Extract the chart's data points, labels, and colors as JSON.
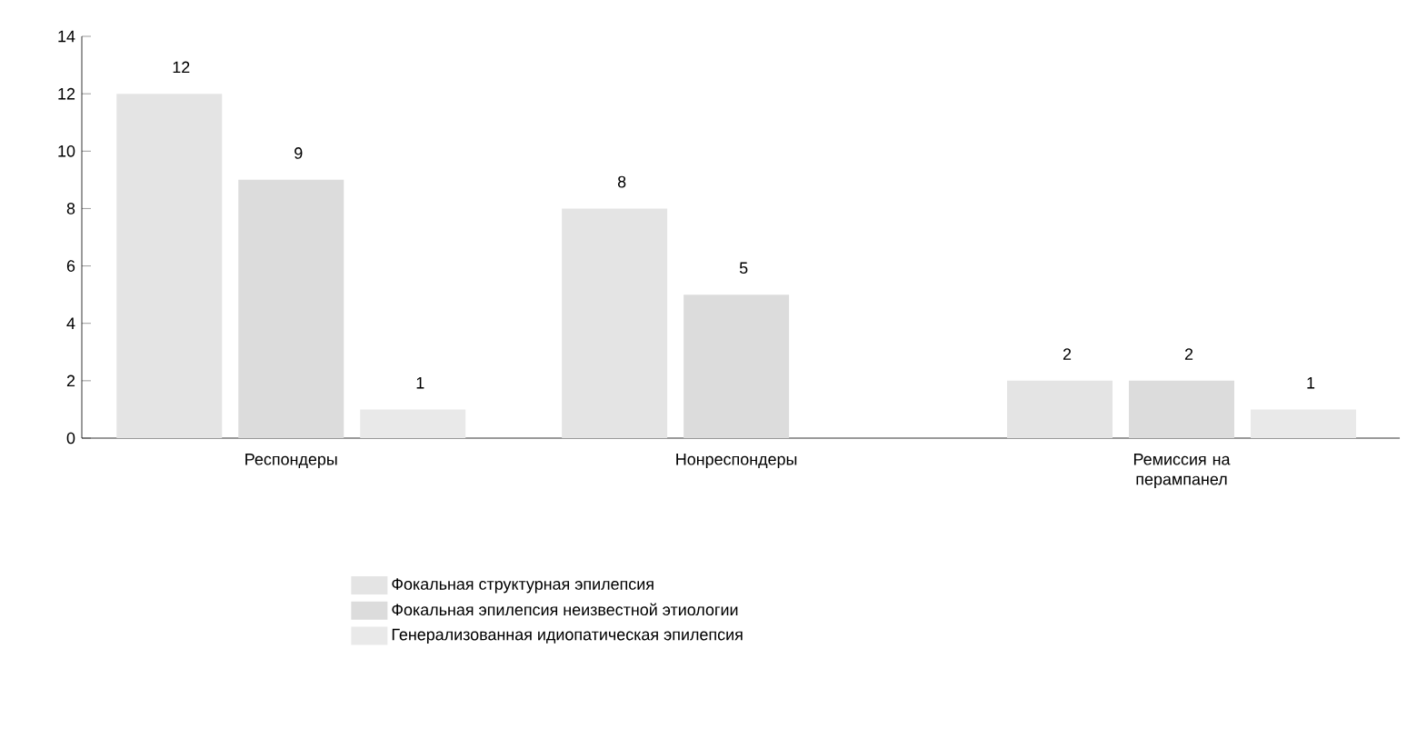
{
  "chart_data": {
    "type": "bar",
    "categories": [
      "Респондеры",
      "Нонреспондеры",
      "Ремиссия на перампанел"
    ],
    "series": [
      {
        "name": "Фокальная структурная эпилепсия",
        "color": "#e4e4e4",
        "values": [
          12,
          8,
          2
        ],
        "value_labels": [
          "12",
          "8",
          "2"
        ]
      },
      {
        "name": "Фокальная эпилепсия неизвестной этиологии",
        "color": "#dcdcdc",
        "values": [
          9,
          5,
          2
        ],
        "value_labels": [
          "9",
          "5",
          "2"
        ]
      },
      {
        "name": "Генерализованная идиопатическая эпилепсия",
        "color": "#e9e9e9",
        "values": [
          1,
          0,
          1
        ],
        "value_labels": [
          "1",
          null,
          "1"
        ]
      }
    ],
    "ylim": [
      0,
      14
    ],
    "yticks": [
      0,
      2,
      4,
      6,
      8,
      10,
      12,
      14
    ],
    "legend": "bottom"
  }
}
